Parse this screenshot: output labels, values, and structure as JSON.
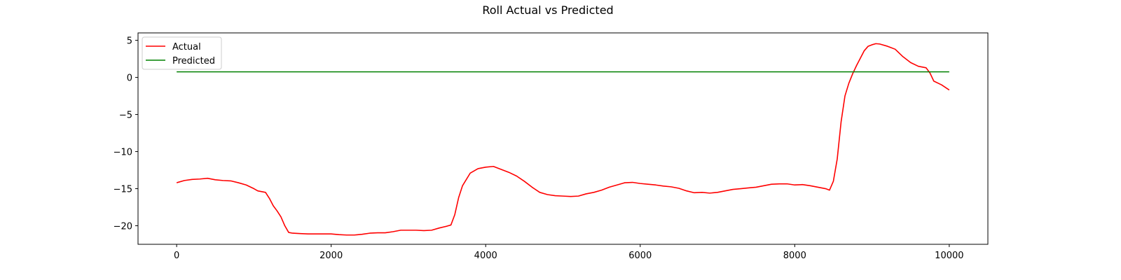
{
  "chart_data": {
    "type": "line",
    "title": "Roll Actual vs Predicted",
    "xlabel": "",
    "ylabel": "",
    "xlim": [
      -500,
      10500
    ],
    "ylim": [
      -22.5,
      6
    ],
    "xticks": [
      0,
      2000,
      4000,
      6000,
      8000,
      10000
    ],
    "yticks": [
      5,
      0,
      -5,
      -10,
      -15,
      -20
    ],
    "grid": false,
    "legend_position": "top-left",
    "series": [
      {
        "name": "Actual",
        "color": "#ff0000",
        "points": [
          [
            0,
            -14.2
          ],
          [
            100,
            -13.9
          ],
          [
            200,
            -13.75
          ],
          [
            300,
            -13.7
          ],
          [
            400,
            -13.6
          ],
          [
            500,
            -13.8
          ],
          [
            600,
            -13.9
          ],
          [
            700,
            -13.95
          ],
          [
            800,
            -14.2
          ],
          [
            900,
            -14.5
          ],
          [
            1000,
            -15.0
          ],
          [
            1050,
            -15.3
          ],
          [
            1150,
            -15.5
          ],
          [
            1200,
            -16.3
          ],
          [
            1250,
            -17.3
          ],
          [
            1300,
            -18.0
          ],
          [
            1350,
            -18.8
          ],
          [
            1400,
            -20.0
          ],
          [
            1450,
            -20.9
          ],
          [
            1500,
            -21.0
          ],
          [
            1600,
            -21.05
          ],
          [
            1700,
            -21.1
          ],
          [
            1800,
            -21.1
          ],
          [
            1900,
            -21.1
          ],
          [
            2000,
            -21.1
          ],
          [
            2100,
            -21.2
          ],
          [
            2200,
            -21.25
          ],
          [
            2300,
            -21.25
          ],
          [
            2400,
            -21.15
          ],
          [
            2500,
            -21.0
          ],
          [
            2600,
            -20.95
          ],
          [
            2700,
            -20.95
          ],
          [
            2800,
            -20.8
          ],
          [
            2900,
            -20.6
          ],
          [
            3000,
            -20.6
          ],
          [
            3100,
            -20.6
          ],
          [
            3200,
            -20.65
          ],
          [
            3300,
            -20.6
          ],
          [
            3400,
            -20.3
          ],
          [
            3500,
            -20.05
          ],
          [
            3550,
            -19.9
          ],
          [
            3600,
            -18.5
          ],
          [
            3650,
            -16.2
          ],
          [
            3700,
            -14.6
          ],
          [
            3800,
            -12.9
          ],
          [
            3900,
            -12.3
          ],
          [
            4000,
            -12.1
          ],
          [
            4100,
            -12.0
          ],
          [
            4200,
            -12.4
          ],
          [
            4300,
            -12.8
          ],
          [
            4400,
            -13.3
          ],
          [
            4500,
            -14.0
          ],
          [
            4600,
            -14.8
          ],
          [
            4700,
            -15.5
          ],
          [
            4800,
            -15.8
          ],
          [
            4900,
            -15.95
          ],
          [
            5000,
            -16.0
          ],
          [
            5100,
            -16.05
          ],
          [
            5200,
            -16.0
          ],
          [
            5300,
            -15.7
          ],
          [
            5400,
            -15.5
          ],
          [
            5500,
            -15.2
          ],
          [
            5600,
            -14.8
          ],
          [
            5700,
            -14.5
          ],
          [
            5800,
            -14.2
          ],
          [
            5900,
            -14.15
          ],
          [
            6000,
            -14.3
          ],
          [
            6100,
            -14.4
          ],
          [
            6200,
            -14.5
          ],
          [
            6300,
            -14.65
          ],
          [
            6400,
            -14.75
          ],
          [
            6500,
            -14.95
          ],
          [
            6600,
            -15.3
          ],
          [
            6700,
            -15.55
          ],
          [
            6800,
            -15.5
          ],
          [
            6900,
            -15.6
          ],
          [
            7000,
            -15.5
          ],
          [
            7100,
            -15.3
          ],
          [
            7200,
            -15.1
          ],
          [
            7300,
            -15.0
          ],
          [
            7400,
            -14.9
          ],
          [
            7500,
            -14.8
          ],
          [
            7600,
            -14.6
          ],
          [
            7700,
            -14.4
          ],
          [
            7800,
            -14.35
          ],
          [
            7900,
            -14.35
          ],
          [
            8000,
            -14.5
          ],
          [
            8100,
            -14.45
          ],
          [
            8200,
            -14.6
          ],
          [
            8300,
            -14.8
          ],
          [
            8400,
            -15.0
          ],
          [
            8450,
            -15.2
          ],
          [
            8500,
            -14.0
          ],
          [
            8550,
            -11.0
          ],
          [
            8600,
            -6.0
          ],
          [
            8650,
            -2.5
          ],
          [
            8700,
            -0.8
          ],
          [
            8750,
            0.5
          ],
          [
            8800,
            1.6
          ],
          [
            8850,
            2.6
          ],
          [
            8900,
            3.6
          ],
          [
            8950,
            4.2
          ],
          [
            9000,
            4.4
          ],
          [
            9050,
            4.55
          ],
          [
            9100,
            4.5
          ],
          [
            9200,
            4.2
          ],
          [
            9300,
            3.8
          ],
          [
            9400,
            2.8
          ],
          [
            9500,
            2.0
          ],
          [
            9600,
            1.5
          ],
          [
            9700,
            1.3
          ],
          [
            9750,
            0.6
          ],
          [
            9800,
            -0.5
          ],
          [
            9900,
            -1.0
          ],
          [
            10000,
            -1.7
          ]
        ]
      },
      {
        "name": "Predicted",
        "color": "#008000",
        "points": [
          [
            0,
            0.75
          ],
          [
            10000,
            0.75
          ]
        ]
      }
    ]
  }
}
